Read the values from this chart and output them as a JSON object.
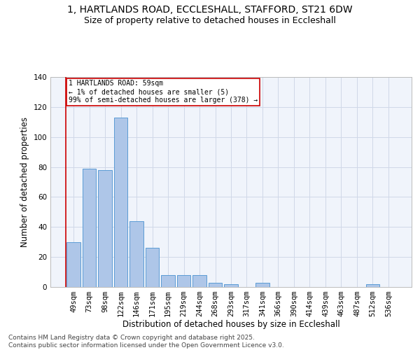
{
  "title_line1": "1, HARTLANDS ROAD, ECCLESHALL, STAFFORD, ST21 6DW",
  "title_line2": "Size of property relative to detached houses in Eccleshall",
  "xlabel": "Distribution of detached houses by size in Eccleshall",
  "ylabel": "Number of detached properties",
  "bar_labels": [
    "49sqm",
    "73sqm",
    "98sqm",
    "122sqm",
    "146sqm",
    "171sqm",
    "195sqm",
    "219sqm",
    "244sqm",
    "268sqm",
    "293sqm",
    "317sqm",
    "341sqm",
    "366sqm",
    "390sqm",
    "414sqm",
    "439sqm",
    "463sqm",
    "487sqm",
    "512sqm",
    "536sqm"
  ],
  "bar_values": [
    30,
    79,
    78,
    113,
    44,
    26,
    8,
    8,
    8,
    3,
    2,
    0,
    3,
    0,
    0,
    0,
    0,
    0,
    0,
    2,
    0
  ],
  "bar_color": "#aec6e8",
  "bar_edge_color": "#5b9bd5",
  "grid_color": "#d0d8e8",
  "bg_color": "#f0f4fb",
  "annotation_box_text": "1 HARTLANDS ROAD: 59sqm\n← 1% of detached houses are smaller (5)\n99% of semi-detached houses are larger (378) →",
  "annotation_box_color": "#cc0000",
  "vline_color": "#cc0000",
  "ylim": [
    0,
    140
  ],
  "yticks": [
    0,
    20,
    40,
    60,
    80,
    100,
    120,
    140
  ],
  "footnote": "Contains HM Land Registry data © Crown copyright and database right 2025.\nContains public sector information licensed under the Open Government Licence v3.0.",
  "title_fontsize": 10,
  "subtitle_fontsize": 9,
  "axis_label_fontsize": 8.5,
  "tick_fontsize": 7.5,
  "annotation_fontsize": 7,
  "footnote_fontsize": 6.5
}
